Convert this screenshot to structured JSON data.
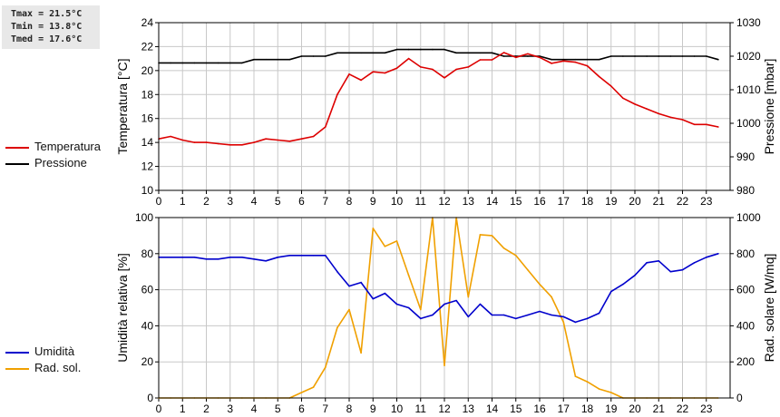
{
  "stats": {
    "tmax": "Tmax = 21.5°C",
    "tmin": "Tmin = 13.8°C",
    "tmed": "Tmed = 17.6°C"
  },
  "colors": {
    "temperature": "#dd0000",
    "pressure": "#000000",
    "humidity": "#0000cc",
    "solar": "#f0a000",
    "grid": "#c8c8c8"
  },
  "chart_data": [
    {
      "type": "line",
      "ylabel": "Temperatura [°C]",
      "y2label": "Pressione [mbar]",
      "xlim": [
        0,
        24
      ],
      "ylim": [
        10,
        24
      ],
      "y2lim": [
        980,
        1030
      ],
      "x_ticks": [
        "0",
        "1",
        "2",
        "3",
        "4",
        "5",
        "6",
        "7",
        "8",
        "9",
        "10",
        "11",
        "12",
        "13",
        "14",
        "15",
        "16",
        "17",
        "18",
        "19",
        "20",
        "21",
        "22",
        "23"
      ],
      "y_ticks": [
        10,
        12,
        14,
        16,
        18,
        20,
        22,
        24
      ],
      "y2_ticks": [
        980,
        990,
        1000,
        1010,
        1020,
        1030
      ],
      "grid": true,
      "legend": "left",
      "series": [
        {
          "name": "Temperatura",
          "axis": "left",
          "x": [
            0,
            0.5,
            1,
            1.5,
            2,
            2.5,
            3,
            3.5,
            4,
            4.5,
            5,
            5.5,
            6,
            6.5,
            7,
            7.5,
            8,
            8.5,
            9,
            9.5,
            10,
            10.5,
            11,
            11.5,
            12,
            12.5,
            13,
            13.5,
            14,
            14.5,
            15,
            15.5,
            16,
            16.5,
            17,
            17.5,
            18,
            18.5,
            19,
            19.5,
            20,
            20.5,
            21,
            21.5,
            22,
            22.5,
            23,
            23.5
          ],
          "values": [
            14.3,
            14.5,
            14.2,
            14.0,
            14.0,
            13.9,
            13.8,
            13.8,
            14.0,
            14.3,
            14.2,
            14.1,
            14.3,
            14.5,
            15.3,
            18.0,
            19.7,
            19.2,
            19.9,
            19.8,
            20.2,
            21.0,
            20.3,
            20.1,
            19.4,
            20.1,
            20.3,
            20.9,
            20.9,
            21.5,
            21.1,
            21.4,
            21.1,
            20.6,
            20.8,
            20.7,
            20.4,
            19.5,
            18.7,
            17.7,
            17.2,
            16.8,
            16.4,
            16.1,
            15.9,
            15.5,
            15.5,
            15.3
          ]
        },
        {
          "name": "Pressione",
          "axis": "right",
          "x": [
            0,
            0.5,
            1,
            1.5,
            2,
            2.5,
            3,
            3.5,
            4,
            4.5,
            5,
            5.5,
            6,
            6.5,
            7,
            7.5,
            8,
            8.5,
            9,
            9.5,
            10,
            10.5,
            11,
            11.5,
            12,
            12.5,
            13,
            13.5,
            14,
            14.5,
            15,
            15.5,
            16,
            16.5,
            17,
            17.5,
            18,
            18.5,
            19,
            19.5,
            20,
            20.5,
            21,
            21.5,
            22,
            22.5,
            23,
            23.5
          ],
          "values": [
            1018,
            1018,
            1018,
            1018,
            1018,
            1018,
            1018,
            1018,
            1019,
            1019,
            1019,
            1019,
            1020,
            1020,
            1020,
            1021,
            1021,
            1021,
            1021,
            1021,
            1022,
            1022,
            1022,
            1022,
            1022,
            1021,
            1021,
            1021,
            1021,
            1020,
            1020,
            1020,
            1020,
            1019,
            1019,
            1019,
            1019,
            1019,
            1020,
            1020,
            1020,
            1020,
            1020,
            1020,
            1020,
            1020,
            1020,
            1019
          ]
        }
      ]
    },
    {
      "type": "line",
      "ylabel": "Umidità relativa [%]",
      "y2label": "Rad. solare [W/mq]",
      "xlim": [
        0,
        24
      ],
      "ylim": [
        0,
        100
      ],
      "y2lim": [
        0,
        1000
      ],
      "x_ticks": [
        "0",
        "1",
        "2",
        "3",
        "4",
        "5",
        "6",
        "7",
        "8",
        "9",
        "10",
        "11",
        "12",
        "13",
        "14",
        "15",
        "16",
        "17",
        "18",
        "19",
        "20",
        "21",
        "22",
        "23"
      ],
      "y_ticks": [
        0,
        20,
        40,
        60,
        80,
        100
      ],
      "y2_ticks": [
        0,
        200,
        400,
        600,
        800,
        1000
      ],
      "grid": true,
      "legend": "left",
      "series": [
        {
          "name": "Umidità",
          "axis": "left",
          "x": [
            0,
            0.5,
            1,
            1.5,
            2,
            2.5,
            3,
            3.5,
            4,
            4.5,
            5,
            5.5,
            6,
            6.5,
            7,
            7.5,
            8,
            8.5,
            9,
            9.5,
            10,
            10.5,
            11,
            11.5,
            12,
            12.5,
            13,
            13.5,
            14,
            14.5,
            15,
            15.5,
            16,
            16.5,
            17,
            17.5,
            18,
            18.5,
            19,
            19.5,
            20,
            20.5,
            21,
            21.5,
            22,
            22.5,
            23,
            23.5
          ],
          "values": [
            78,
            78,
            78,
            78,
            77,
            77,
            78,
            78,
            77,
            76,
            78,
            79,
            79,
            79,
            79,
            70,
            62,
            64,
            55,
            58,
            52,
            50,
            44,
            46,
            52,
            54,
            45,
            52,
            46,
            46,
            44,
            46,
            48,
            46,
            45,
            42,
            44,
            47,
            59,
            63,
            68,
            75,
            76,
            70,
            71,
            75,
            78,
            80
          ]
        },
        {
          "name": "Rad. sol.",
          "axis": "right",
          "x": [
            0,
            0.5,
            1,
            1.5,
            2,
            2.5,
            3,
            3.5,
            4,
            4.5,
            5,
            5.5,
            6,
            6.5,
            7,
            7.5,
            8,
            8.5,
            9,
            9.5,
            10,
            10.5,
            11,
            11.5,
            12,
            12.5,
            13,
            13.5,
            14,
            14.5,
            15,
            15.5,
            16,
            16.5,
            17,
            17.5,
            18,
            18.5,
            19,
            19.5,
            20,
            20.5,
            21,
            21.5,
            22,
            22.5,
            23,
            23.5
          ],
          "values": [
            0,
            0,
            0,
            0,
            0,
            0,
            0,
            0,
            0,
            0,
            0,
            0,
            30,
            60,
            170,
            390,
            490,
            250,
            940,
            840,
            870,
            680,
            490,
            1000,
            180,
            1000,
            560,
            905,
            900,
            830,
            790,
            710,
            630,
            560,
            420,
            120,
            90,
            50,
            30,
            0,
            0,
            0,
            0,
            0,
            0,
            0,
            0,
            0
          ]
        }
      ]
    }
  ]
}
